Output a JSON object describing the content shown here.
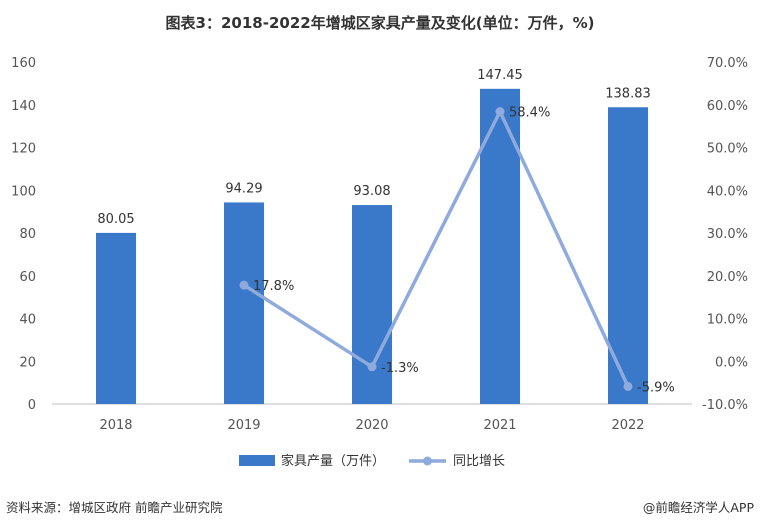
{
  "title": "图表3：2018-2022年增城区家具产量及变化(单位：万件，%)",
  "source": "资料来源：增城区政府 前瞻产业研究院",
  "brand": "@前瞻经济学人APP",
  "chart_data": {
    "type": "bar",
    "categories": [
      "2018",
      "2019",
      "2020",
      "2021",
      "2022"
    ],
    "series": [
      {
        "name": "家具产量（万件）",
        "type": "bar",
        "axis": "left",
        "values": [
          80.05,
          94.29,
          93.08,
          147.45,
          138.83
        ],
        "labels": [
          "80.05",
          "94.29",
          "93.08",
          "147.45",
          "138.83"
        ]
      },
      {
        "name": "同比增长",
        "type": "line",
        "axis": "right",
        "values": [
          null,
          17.8,
          -1.3,
          58.4,
          -5.9
        ],
        "labels": [
          "",
          "17.8%",
          "-1.3%",
          "58.4%",
          "-5.9%"
        ]
      }
    ],
    "y_left": {
      "ylim": [
        0,
        160
      ],
      "ticks": [
        "0",
        "20",
        "40",
        "60",
        "80",
        "100",
        "120",
        "140",
        "160"
      ]
    },
    "y_right": {
      "ylim": [
        -10,
        70
      ],
      "ticks": [
        "-10.0%",
        "0.0%",
        "10.0%",
        "20.0%",
        "30.0%",
        "40.0%",
        "50.0%",
        "60.0%",
        "70.0%"
      ]
    },
    "colors": {
      "bar": "#3a78c9",
      "line": "#8faadc",
      "axis": "#bfbfbf"
    },
    "legend_position": "bottom",
    "grid": false
  }
}
